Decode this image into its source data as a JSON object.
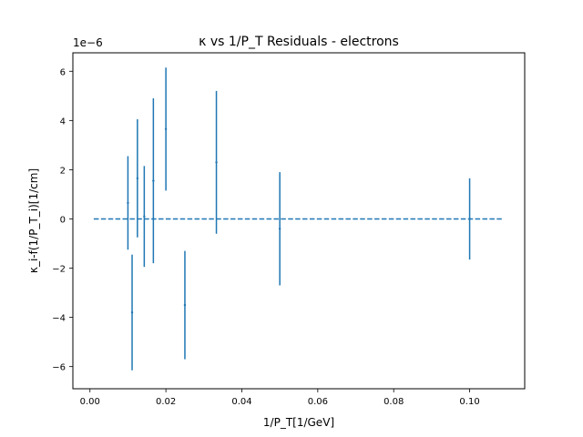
{
  "chart_data": {
    "type": "scatter",
    "title": "κ vs 1/P_T Residuals - electrons",
    "xlabel": "1/P_T[1/GeV]",
    "ylabel": "κ_i-f(1/P_T_i)[1/cm]",
    "y_offset_label": "1e−6",
    "xlim": [
      -0.0045,
      0.1145
    ],
    "ylim": [
      -6.9,
      6.75
    ],
    "x_ticks": [
      0.0,
      0.02,
      0.04,
      0.06,
      0.08,
      0.1
    ],
    "x_tick_labels": [
      "0.00",
      "0.02",
      "0.04",
      "0.06",
      "0.08",
      "0.10"
    ],
    "y_ticks": [
      -6,
      -4,
      -2,
      0,
      2,
      4,
      6
    ],
    "y_tick_labels": [
      "−6",
      "−4",
      "−2",
      "0",
      "2",
      "4",
      "6"
    ],
    "y_scale_note": "values in units of 1e-6",
    "grid": false,
    "series": [
      {
        "kind": "errorbar",
        "color": "#1f77b4",
        "points": [
          {
            "x": 0.01,
            "y": 0.65,
            "err": 1.9
          },
          {
            "x": 0.0111,
            "y": -3.8,
            "err": 2.35
          },
          {
            "x": 0.0125,
            "y": 1.65,
            "err": 2.4
          },
          {
            "x": 0.0143,
            "y": 0.1,
            "err": 2.05
          },
          {
            "x": 0.0167,
            "y": 1.55,
            "err": 3.35
          },
          {
            "x": 0.02,
            "y": 3.65,
            "err": 2.5
          },
          {
            "x": 0.025,
            "y": -3.5,
            "err": 2.2
          },
          {
            "x": 0.0333,
            "y": 2.3,
            "err": 2.9
          },
          {
            "x": 0.05,
            "y": -0.4,
            "err": 2.3
          },
          {
            "x": 0.1,
            "y": 0.0,
            "err": 1.65
          }
        ]
      },
      {
        "kind": "dashed-line",
        "color": "#1f77b4",
        "x": [
          0.001,
          0.109
        ],
        "y": [
          0,
          0
        ]
      }
    ]
  }
}
